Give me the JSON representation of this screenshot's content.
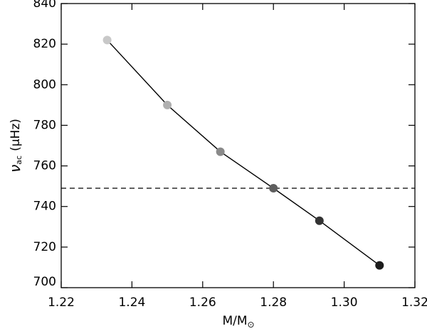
{
  "chart_data": {
    "type": "line",
    "x": [
      1.233,
      1.25,
      1.265,
      1.28,
      1.293,
      1.31
    ],
    "values": [
      822,
      790,
      767,
      749,
      733,
      711
    ],
    "colors": [
      "#c8c8c8",
      "#b0b0b0",
      "#8a8a8a",
      "#5e5e5e",
      "#333333",
      "#1c1c1c"
    ],
    "line_color": "#000000",
    "hline": {
      "value": 749,
      "style": "dashed",
      "color": "#000000"
    },
    "xlim": [
      1.22,
      1.32
    ],
    "xticks": [
      1.22,
      1.24,
      1.26,
      1.28,
      {
        "value": 1.3,
        "label": "1.30"
      },
      1.32
    ],
    "ylim": [
      700,
      840
    ],
    "yticks": [
      700,
      720,
      740,
      760,
      780,
      800,
      820,
      840
    ],
    "x_label": {
      "text": "M/M",
      "subscript": "⊙"
    },
    "y_label": {
      "symbol": "ν",
      "subscript": "ac",
      "unit": "(μHz)"
    }
  }
}
